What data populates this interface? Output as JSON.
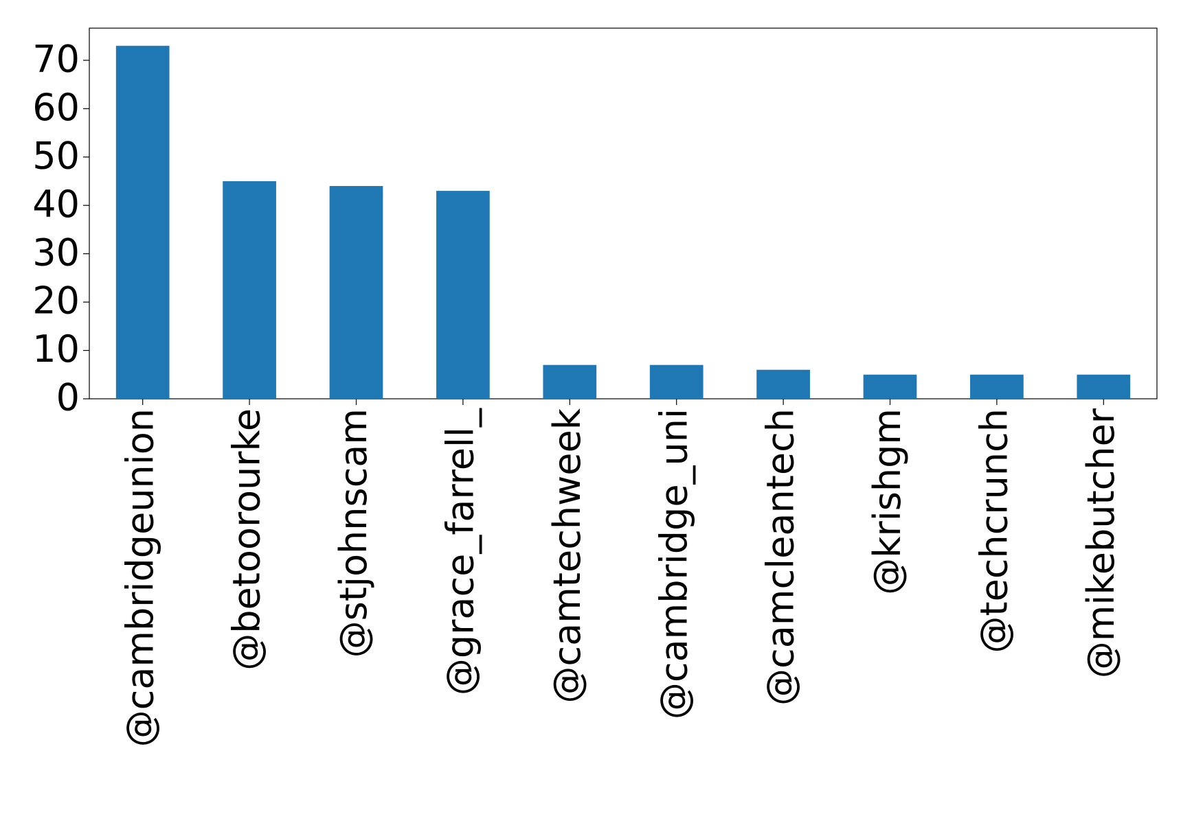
{
  "chart_data": {
    "type": "bar",
    "categories": [
      "@cambridgeunion",
      "@betoorourke",
      "@stjohnscam",
      "@grace_farrell_",
      "@camtechweek",
      "@cambridge_uni",
      "@camcleantech",
      "@krishgm",
      "@techcrunch",
      "@mikebutcher"
    ],
    "values": [
      73,
      45,
      44,
      43,
      7,
      7,
      6,
      5,
      5,
      5
    ],
    "color": "#1f77b4",
    "ylim": [
      0,
      76.65
    ],
    "yticks": [
      0,
      10,
      20,
      30,
      40,
      50,
      60,
      70
    ],
    "grid": false
  }
}
